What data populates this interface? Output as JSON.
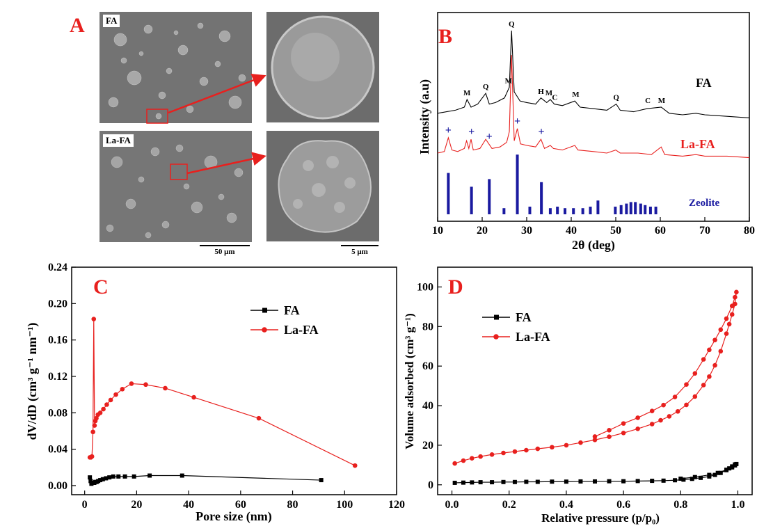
{
  "panelA": {
    "letter": "A",
    "labels": [
      "FA",
      "La-FA"
    ],
    "scale_left": "50 μm",
    "scale_right": "5 μm"
  },
  "chart_data": [
    {
      "id": "B",
      "type": "line",
      "panel_letter": "B",
      "xlabel": "2θ (deg)",
      "ylabel": "Intensity (a.u)",
      "xlim": [
        10,
        80
      ],
      "xticks": [
        10,
        20,
        30,
        40,
        50,
        60,
        70,
        80
      ],
      "series": [
        {
          "name": "FA",
          "color": "#000000",
          "x": [
            10,
            12,
            14,
            16,
            16.6,
            17.5,
            19,
            20.8,
            21.6,
            23,
            25,
            26.1,
            26.6,
            27.2,
            28.5,
            30,
            32,
            33.2,
            34.5,
            35.3,
            36.2,
            38,
            40.8,
            42,
            45,
            48,
            50.1,
            51,
            54,
            57,
            60.2,
            62,
            65,
            68,
            70,
            75,
            80
          ],
          "y": [
            6.6,
            6.7,
            6.8,
            7.0,
            7.5,
            7.0,
            7.2,
            7.9,
            7.2,
            7.3,
            7.6,
            8.3,
            12.0,
            8.0,
            7.4,
            7.3,
            7.2,
            7.6,
            7.3,
            7.5,
            7.2,
            7.1,
            7.4,
            7.0,
            6.9,
            6.8,
            7.2,
            6.8,
            6.7,
            6.9,
            7.0,
            6.6,
            6.5,
            6.6,
            6.5,
            6.4,
            6.3
          ]
        },
        {
          "name": "La-FA",
          "color": "#e8201e",
          "x": [
            10,
            11.5,
            12.4,
            13.2,
            14.5,
            16,
            16.5,
            17,
            17.5,
            18,
            19.5,
            20.8,
            21.5,
            22.2,
            24,
            25.5,
            26.1,
            26.6,
            27.2,
            27.9,
            28.6,
            30,
            32,
            33.2,
            34,
            35.3,
            36,
            38,
            40.8,
            41.5,
            45,
            48,
            50,
            51,
            55,
            58,
            60.2,
            61,
            65,
            68,
            70,
            75,
            80
          ],
          "y": [
            4.0,
            4.1,
            5.0,
            4.2,
            4.1,
            4.3,
            4.8,
            4.3,
            4.9,
            4.2,
            4.3,
            4.9,
            4.6,
            4.3,
            4.4,
            4.7,
            5.4,
            10.4,
            4.8,
            5.6,
            4.6,
            4.5,
            4.4,
            4.9,
            4.3,
            4.5,
            4.3,
            4.2,
            4.5,
            4.2,
            4.1,
            4.0,
            4.2,
            4.0,
            4.0,
            3.9,
            4.4,
            3.9,
            3.8,
            3.9,
            3.8,
            3.8,
            3.7
          ]
        },
        {
          "name": "Zeolite",
          "type": "stick",
          "color": "#1a1aa0",
          "x": [
            12.4,
            17.6,
            21.6,
            24.9,
            27.9,
            30.7,
            33.3,
            35.3,
            36.9,
            38.6,
            40.5,
            42.6,
            44.3,
            46.0,
            49.9,
            51.2,
            52.4,
            53.4,
            54.4,
            55.6,
            56.6,
            57.8,
            59.0
          ],
          "y": [
            2.7,
            1.8,
            2.3,
            0.4,
            3.9,
            0.5,
            2.1,
            0.4,
            0.5,
            0.4,
            0.4,
            0.4,
            0.5,
            0.9,
            0.5,
            0.6,
            0.7,
            0.8,
            0.8,
            0.7,
            0.6,
            0.5,
            0.5
          ]
        }
      ],
      "annotations": [
        {
          "text": "M",
          "x": 16.6,
          "series": "FA"
        },
        {
          "text": "Q",
          "x": 20.8,
          "series": "FA"
        },
        {
          "text": "M",
          "x": 25.9,
          "series": "FA"
        },
        {
          "text": "Q",
          "x": 26.6,
          "series": "FA"
        },
        {
          "text": "H",
          "x": 33.2,
          "series": "FA"
        },
        {
          "text": "M",
          "x": 35.0,
          "series": "FA"
        },
        {
          "text": "C",
          "x": 36.3,
          "series": "FA"
        },
        {
          "text": "M",
          "x": 41.0,
          "series": "FA"
        },
        {
          "text": "Q",
          "x": 50.1,
          "series": "FA"
        },
        {
          "text": "C",
          "x": 57.2,
          "series": "FA"
        },
        {
          "text": "M",
          "x": 60.3,
          "series": "FA"
        },
        {
          "text": "+",
          "x": 12.4,
          "series": "La-FA"
        },
        {
          "text": "+",
          "x": 17.6,
          "series": "La-FA"
        },
        {
          "text": "+",
          "x": 21.6,
          "series": "La-FA"
        },
        {
          "text": "+",
          "x": 27.9,
          "series": "La-FA"
        },
        {
          "text": "+",
          "x": 33.3,
          "series": "La-FA"
        }
      ]
    },
    {
      "id": "C",
      "type": "line",
      "panel_letter": "C",
      "xlabel": "Pore size (nm)",
      "ylabel": "dV/dD (cm³ g⁻¹ nm⁻¹)",
      "xlim": [
        -5,
        120
      ],
      "ylim": [
        -0.01,
        0.24
      ],
      "xticks": [
        0,
        20,
        40,
        60,
        80,
        100,
        120
      ],
      "yticks": [
        0.0,
        0.04,
        0.08,
        0.12,
        0.16,
        0.2,
        0.24
      ],
      "legend_position": "upper-right",
      "series": [
        {
          "name": "FA",
          "color": "#000000",
          "marker": "square",
          "x": [
            2.0,
            2.3,
            2.6,
            3.0,
            3.3,
            3.7,
            4.1,
            4.6,
            5.2,
            6.0,
            7.0,
            8.2,
            9.5,
            11.0,
            13.0,
            15.5,
            19.0,
            25.0,
            37.5,
            91.0
          ],
          "y": [
            0.009,
            0.005,
            0.002,
            0.003,
            0.003,
            0.003,
            0.004,
            0.004,
            0.005,
            0.006,
            0.007,
            0.008,
            0.009,
            0.01,
            0.01,
            0.01,
            0.01,
            0.011,
            0.011,
            0.006
          ]
        },
        {
          "name": "La-FA",
          "color": "#e8201e",
          "marker": "circle",
          "x": [
            2.0,
            2.4,
            2.8,
            3.2,
            3.5,
            3.8,
            4.1,
            4.5,
            5.1,
            6.0,
            7.2,
            8.5,
            10.0,
            12.0,
            14.5,
            18.0,
            23.5,
            31.0,
            42.0,
            67.0,
            104.0
          ],
          "y": [
            0.031,
            0.031,
            0.032,
            0.059,
            0.183,
            0.066,
            0.071,
            0.074,
            0.078,
            0.08,
            0.084,
            0.089,
            0.094,
            0.1,
            0.106,
            0.112,
            0.111,
            0.107,
            0.097,
            0.074,
            0.022
          ]
        }
      ]
    },
    {
      "id": "D",
      "type": "line",
      "panel_letter": "D",
      "xlabel": "Relative pressure (p/p₀)",
      "ylabel": "Volume adsorbed (cm³ g⁻¹)",
      "xlim": [
        -0.05,
        1.05
      ],
      "ylim": [
        -5,
        110
      ],
      "xticks": [
        0.0,
        0.2,
        0.4,
        0.6,
        0.8,
        1.0
      ],
      "yticks": [
        0,
        20,
        40,
        60,
        80,
        100
      ],
      "legend_position": "upper-left",
      "series": [
        {
          "name": "FA",
          "color": "#000000",
          "marker": "square",
          "x": [
            0.01,
            0.04,
            0.07,
            0.1,
            0.14,
            0.18,
            0.22,
            0.26,
            0.3,
            0.35,
            0.4,
            0.45,
            0.5,
            0.55,
            0.6,
            0.65,
            0.7,
            0.74,
            0.78,
            0.81,
            0.84,
            0.87,
            0.9,
            0.92,
            0.94,
            0.96,
            0.97,
            0.98,
            0.99,
            0.995,
            0.99,
            0.98,
            0.96,
            0.93,
            0.9,
            0.85,
            0.8
          ],
          "y": [
            1.0,
            1.1,
            1.2,
            1.3,
            1.3,
            1.4,
            1.4,
            1.5,
            1.5,
            1.6,
            1.6,
            1.7,
            1.7,
            1.8,
            1.8,
            1.9,
            2.0,
            2.1,
            2.3,
            2.6,
            3.0,
            3.5,
            4.2,
            5.0,
            6.0,
            7.4,
            8.3,
            9.3,
            10.3,
            10.5,
            9.8,
            8.8,
            7.6,
            6.0,
            5.0,
            3.9,
            3.1
          ]
        },
        {
          "name": "La-FA",
          "color": "#e8201e",
          "marker": "circle",
          "x": [
            0.01,
            0.04,
            0.07,
            0.1,
            0.14,
            0.18,
            0.22,
            0.26,
            0.3,
            0.35,
            0.4,
            0.45,
            0.5,
            0.55,
            0.6,
            0.65,
            0.7,
            0.73,
            0.76,
            0.79,
            0.82,
            0.85,
            0.88,
            0.9,
            0.92,
            0.94,
            0.96,
            0.97,
            0.98,
            0.99,
            0.995,
            0.99,
            0.98,
            0.96,
            0.94,
            0.92,
            0.9,
            0.88,
            0.85,
            0.82,
            0.78,
            0.74,
            0.7,
            0.65,
            0.6,
            0.55,
            0.5
          ],
          "y": [
            10.8,
            12.2,
            13.4,
            14.3,
            15.3,
            16.1,
            16.8,
            17.5,
            18.2,
            19.0,
            20.0,
            21.3,
            22.7,
            24.3,
            26.2,
            28.3,
            30.7,
            32.6,
            34.6,
            37.1,
            40.4,
            44.6,
            50.4,
            54.7,
            60.4,
            67.5,
            76.4,
            81.2,
            86.1,
            91.4,
            97.4,
            94.8,
            90.4,
            84.0,
            78.4,
            73.2,
            68.2,
            63.4,
            56.3,
            50.7,
            44.4,
            40.3,
            37.3,
            33.9,
            31.0,
            27.6,
            24.4
          ]
        }
      ]
    }
  ]
}
